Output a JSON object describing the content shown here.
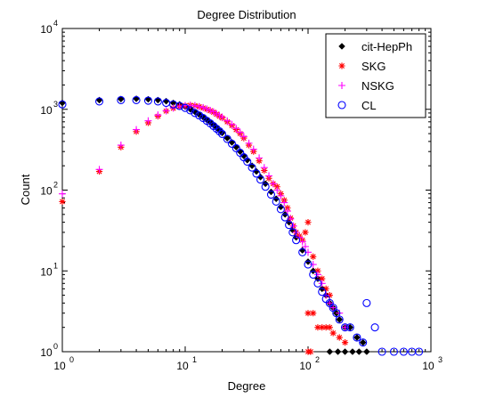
{
  "chart_data": {
    "type": "scatter",
    "title": "Degree Distribution",
    "xlabel": "Degree",
    "ylabel": "Count",
    "xscale": "log",
    "yscale": "log",
    "xlim": [
      1,
      1000
    ],
    "ylim": [
      1,
      10000
    ],
    "x_ticks": [
      {
        "base": "10",
        "exp": "0",
        "value": 1
      },
      {
        "base": "10",
        "exp": "1",
        "value": 10
      },
      {
        "base": "10",
        "exp": "2",
        "value": 100
      },
      {
        "base": "10",
        "exp": "3",
        "value": 1000
      }
    ],
    "y_ticks": [
      {
        "base": "10",
        "exp": "0",
        "value": 1
      },
      {
        "base": "10",
        "exp": "1",
        "value": 10
      },
      {
        "base": "10",
        "exp": "2",
        "value": 100
      },
      {
        "base": "10",
        "exp": "3",
        "value": 1000
      },
      {
        "base": "10",
        "exp": "4",
        "value": 10000
      }
    ],
    "legend_position": "top-right",
    "grid": false,
    "series": [
      {
        "name": "cit-HepPh",
        "marker": "dot",
        "color": "#000000",
        "x": [
          1,
          2,
          3,
          4,
          5,
          6,
          7,
          8,
          9,
          10,
          11,
          12,
          13,
          14,
          15,
          16,
          17,
          18,
          19,
          20,
          22,
          24,
          26,
          28,
          30,
          32,
          35,
          38,
          41,
          45,
          50,
          55,
          60,
          65,
          70,
          75,
          80,
          90,
          100,
          110,
          120,
          130,
          140,
          150,
          160,
          170,
          180,
          200,
          220,
          250,
          280,
          150,
          175,
          200,
          230,
          260,
          300
        ],
        "y": [
          1200,
          1300,
          1340,
          1350,
          1330,
          1300,
          1260,
          1200,
          1150,
          1080,
          1000,
          930,
          860,
          800,
          740,
          690,
          640,
          590,
          550,
          510,
          440,
          390,
          340,
          300,
          265,
          235,
          200,
          170,
          145,
          120,
          95,
          78,
          62,
          50,
          40,
          32,
          26,
          18,
          13,
          10,
          8,
          6,
          5,
          4,
          3.5,
          3,
          2.5,
          2,
          2,
          1.5,
          1.3,
          1,
          1,
          1,
          1,
          1,
          1
        ]
      },
      {
        "name": "SKG",
        "marker": "star",
        "color": "#ff0000",
        "x": [
          1,
          2,
          3,
          4,
          5,
          6,
          7,
          8,
          9,
          10,
          11,
          12,
          13,
          14,
          15,
          16,
          17,
          18,
          19,
          20,
          22,
          24,
          26,
          28,
          30,
          33,
          36,
          40,
          44,
          48,
          52,
          56,
          60,
          64,
          68,
          72,
          76,
          80,
          85,
          90,
          95,
          100,
          110,
          120,
          130,
          140,
          150,
          100,
          110,
          120,
          130,
          140,
          150,
          160,
          180,
          200,
          100,
          105
        ],
        "y": [
          72,
          170,
          340,
          530,
          680,
          820,
          950,
          1030,
          1080,
          1110,
          1120,
          1110,
          1080,
          1040,
          1000,
          960,
          920,
          870,
          820,
          780,
          700,
          630,
          560,
          500,
          440,
          360,
          300,
          230,
          175,
          140,
          120,
          110,
          90,
          75,
          60,
          45,
          36,
          30,
          27,
          24,
          30,
          40,
          15,
          10,
          8,
          6,
          5,
          3,
          3,
          2,
          2,
          2,
          2,
          1.7,
          1.5,
          1.3,
          1,
          1
        ]
      },
      {
        "name": "NSKG",
        "marker": "plus",
        "color": "#ff00ff",
        "x": [
          1,
          2,
          3,
          4,
          5,
          6,
          7,
          8,
          9,
          10,
          11,
          12,
          13,
          14,
          15,
          16,
          17,
          18,
          19,
          20,
          22,
          24,
          26,
          28,
          30,
          33,
          36,
          40,
          44,
          48,
          52,
          56,
          60,
          64,
          68,
          72,
          76,
          80,
          85,
          90,
          95,
          100,
          110,
          120,
          130,
          140,
          150,
          160,
          180,
          200
        ],
        "y": [
          90,
          180,
          360,
          560,
          720,
          850,
          960,
          1040,
          1090,
          1110,
          1120,
          1110,
          1080,
          1050,
          1010,
          970,
          930,
          880,
          840,
          800,
          720,
          650,
          580,
          520,
          460,
          380,
          320,
          250,
          190,
          150,
          120,
          100,
          85,
          70,
          55,
          44,
          36,
          30,
          26,
          23,
          20,
          17,
          12,
          9,
          7,
          5,
          4,
          3.5,
          3,
          2
        ]
      },
      {
        "name": "CL",
        "marker": "circle",
        "color": "#0000ff",
        "x": [
          1,
          2,
          3,
          4,
          5,
          6,
          7,
          8,
          9,
          10,
          11,
          12,
          13,
          14,
          15,
          16,
          17,
          18,
          19,
          20,
          22,
          24,
          26,
          28,
          30,
          32,
          35,
          38,
          41,
          45,
          50,
          55,
          60,
          65,
          70,
          75,
          80,
          90,
          100,
          110,
          120,
          130,
          140,
          150,
          160,
          170,
          180,
          200,
          220,
          250,
          280,
          300,
          350,
          400,
          500,
          600,
          700,
          800
        ],
        "y": [
          1150,
          1250,
          1300,
          1300,
          1280,
          1250,
          1200,
          1150,
          1100,
          1040,
          970,
          900,
          840,
          780,
          720,
          670,
          620,
          575,
          535,
          495,
          430,
          375,
          330,
          290,
          255,
          225,
          190,
          160,
          135,
          110,
          88,
          72,
          58,
          46,
          37,
          30,
          24,
          17,
          12,
          9,
          7,
          5.5,
          4.5,
          4,
          3.5,
          3,
          2.5,
          2,
          2,
          1.5,
          1.3,
          4,
          2,
          1,
          1,
          1,
          1,
          1
        ]
      }
    ]
  }
}
